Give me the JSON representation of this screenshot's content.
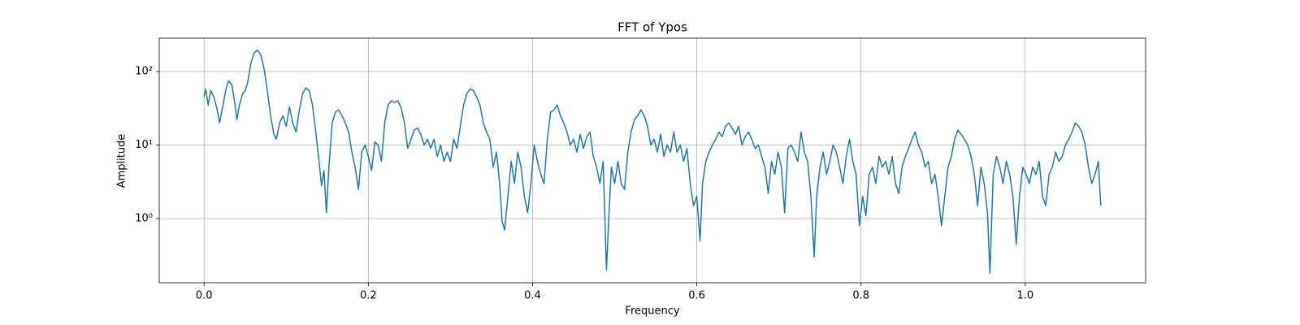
{
  "chart_data": {
    "type": "line",
    "title": "FFT of Ypos",
    "x_label": "Frequency",
    "y_label": "Amplitude",
    "log_y": true,
    "grid": true,
    "color": "#1f77b4",
    "xlim": [
      -0.0546,
      1.1466
    ],
    "ylim": [
      0.134,
      284
    ],
    "xticks": [
      {
        "value": 0,
        "label": "0.0"
      },
      0.2,
      0.4,
      0.6,
      0.8,
      {
        "value": 1,
        "label": "1.0"
      }
    ],
    "yticks": [
      {
        "value": 1,
        "label": "10⁰"
      },
      {
        "value": 10,
        "label": "10¹"
      },
      {
        "value": 100,
        "label": "10²"
      }
    ],
    "x": [
      0.0,
      0.002,
      0.005,
      0.008,
      0.012,
      0.016,
      0.019,
      0.023,
      0.027,
      0.03,
      0.034,
      0.037,
      0.04,
      0.043,
      0.047,
      0.05,
      0.053,
      0.057,
      0.061,
      0.065,
      0.069,
      0.073,
      0.077,
      0.081,
      0.085,
      0.088,
      0.092,
      0.096,
      0.1,
      0.104,
      0.108,
      0.112,
      0.116,
      0.12,
      0.124,
      0.128,
      0.132,
      0.136,
      0.14,
      0.143,
      0.146,
      0.149,
      0.152,
      0.156,
      0.16,
      0.164,
      0.168,
      0.172,
      0.176,
      0.18,
      0.184,
      0.188,
      0.192,
      0.196,
      0.2,
      0.204,
      0.208,
      0.212,
      0.216,
      0.22,
      0.224,
      0.228,
      0.232,
      0.236,
      0.24,
      0.244,
      0.248,
      0.252,
      0.256,
      0.26,
      0.264,
      0.268,
      0.272,
      0.276,
      0.28,
      0.284,
      0.288,
      0.292,
      0.296,
      0.3,
      0.304,
      0.308,
      0.312,
      0.316,
      0.32,
      0.324,
      0.328,
      0.332,
      0.336,
      0.34,
      0.344,
      0.348,
      0.352,
      0.356,
      0.36,
      0.363,
      0.366,
      0.37,
      0.374,
      0.378,
      0.382,
      0.386,
      0.39,
      0.394,
      0.398,
      0.402,
      0.406,
      0.41,
      0.414,
      0.418,
      0.422,
      0.426,
      0.43,
      0.434,
      0.438,
      0.442,
      0.446,
      0.45,
      0.454,
      0.458,
      0.462,
      0.466,
      0.47,
      0.474,
      0.478,
      0.482,
      0.486,
      0.49,
      0.493,
      0.496,
      0.5,
      0.504,
      0.508,
      0.512,
      0.516,
      0.52,
      0.524,
      0.528,
      0.532,
      0.536,
      0.54,
      0.544,
      0.548,
      0.552,
      0.556,
      0.56,
      0.564,
      0.568,
      0.572,
      0.576,
      0.58,
      0.584,
      0.588,
      0.592,
      0.596,
      0.6,
      0.604,
      0.607,
      0.611,
      0.615,
      0.619,
      0.623,
      0.627,
      0.631,
      0.635,
      0.639,
      0.643,
      0.647,
      0.651,
      0.655,
      0.659,
      0.663,
      0.667,
      0.671,
      0.675,
      0.679,
      0.683,
      0.687,
      0.691,
      0.695,
      0.699,
      0.703,
      0.707,
      0.711,
      0.715,
      0.719,
      0.723,
      0.727,
      0.731,
      0.735,
      0.739,
      0.743,
      0.746,
      0.75,
      0.754,
      0.758,
      0.762,
      0.766,
      0.77,
      0.774,
      0.778,
      0.782,
      0.786,
      0.79,
      0.794,
      0.798,
      0.802,
      0.806,
      0.81,
      0.814,
      0.818,
      0.822,
      0.826,
      0.83,
      0.834,
      0.838,
      0.842,
      0.846,
      0.85,
      0.854,
      0.858,
      0.862,
      0.866,
      0.87,
      0.874,
      0.878,
      0.882,
      0.886,
      0.89,
      0.894,
      0.898,
      0.902,
      0.906,
      0.91,
      0.914,
      0.918,
      0.922,
      0.926,
      0.93,
      0.934,
      0.938,
      0.942,
      0.946,
      0.95,
      0.954,
      0.957,
      0.961,
      0.965,
      0.969,
      0.973,
      0.977,
      0.981,
      0.985,
      0.989,
      0.993,
      0.997,
      1.001,
      1.005,
      1.009,
      1.013,
      1.017,
      1.021,
      1.025,
      1.029,
      1.033,
      1.037,
      1.041,
      1.045,
      1.049,
      1.053,
      1.057,
      1.061,
      1.065,
      1.069,
      1.073,
      1.077,
      1.081,
      1.085,
      1.089,
      1.092
    ],
    "values": [
      45,
      58,
      35,
      55,
      45,
      30,
      20,
      35,
      60,
      75,
      65,
      40,
      22,
      35,
      50,
      55,
      70,
      130,
      180,
      195,
      170,
      110,
      55,
      25,
      14,
      12,
      20,
      25,
      18,
      33,
      20,
      15,
      30,
      50,
      60,
      55,
      35,
      15,
      6,
      2.8,
      4.5,
      1.2,
      5,
      20,
      28,
      30,
      25,
      20,
      15,
      8,
      5,
      2.5,
      8,
      10,
      7,
      4.5,
      11,
      10,
      6,
      20,
      35,
      40,
      38,
      40,
      32,
      20,
      9,
      12,
      16,
      17,
      14,
      10,
      12,
      9,
      12,
      7,
      10,
      6,
      8,
      6,
      12,
      9,
      18,
      35,
      50,
      58,
      55,
      45,
      35,
      20,
      15,
      12,
      5,
      8,
      3,
      0.9,
      0.7,
      2,
      6,
      3,
      8,
      5,
      2,
      1.2,
      3,
      10,
      6,
      4,
      3,
      12,
      28,
      30,
      35,
      25,
      20,
      15,
      10,
      12,
      8,
      14,
      9,
      13,
      15,
      7,
      5,
      3,
      6,
      0.2,
      1.1,
      5,
      3,
      6,
      3,
      2.5,
      8,
      15,
      22,
      25,
      30,
      25,
      18,
      10,
      12,
      8,
      14,
      7,
      10,
      8,
      15,
      8,
      10,
      6,
      9,
      3,
      1.5,
      2,
      0.5,
      3,
      6,
      8,
      10,
      12,
      15,
      13,
      18,
      20,
      17,
      14,
      18,
      10,
      13,
      15,
      12,
      9,
      10,
      7,
      5,
      2.2,
      6,
      4,
      8,
      5,
      1.2,
      9,
      10,
      8,
      6,
      15,
      8,
      6,
      2,
      0.3,
      2,
      5,
      8,
      4,
      6,
      10,
      8,
      5,
      3,
      7,
      12,
      6,
      4,
      0.8,
      2,
      1.1,
      4,
      5,
      3,
      7,
      5,
      6,
      4,
      7,
      3,
      2.2,
      5,
      7,
      9,
      12,
      15,
      10,
      8,
      5,
      6,
      3,
      4,
      2,
      0.8,
      2,
      5,
      7,
      12,
      16,
      14,
      12,
      10,
      7,
      4,
      1.5,
      5,
      3,
      1.2,
      0.18,
      4,
      7,
      5,
      3,
      6,
      4,
      2,
      0.45,
      2,
      5,
      4,
      3,
      5,
      4,
      6,
      2,
      1.5,
      4,
      5,
      8,
      6,
      7,
      10,
      12,
      15,
      20,
      18,
      15,
      10,
      5,
      3,
      4,
      6,
      1.5
    ]
  }
}
